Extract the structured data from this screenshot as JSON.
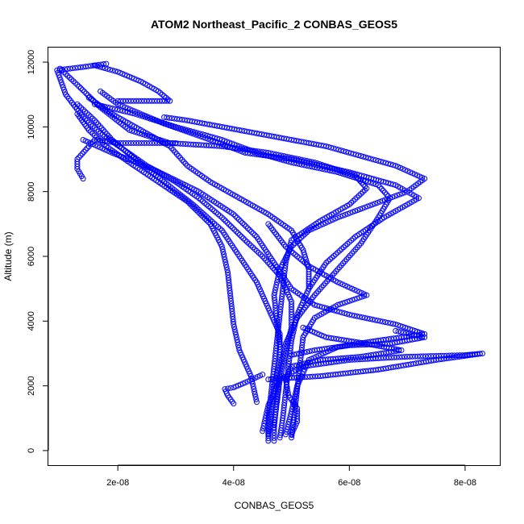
{
  "chart_data": {
    "type": "scatter",
    "title": "ATOM2 Northeast_Pacific_2 CONBAS_GEOS5",
    "xlabel": "CONBAS_GEOS5",
    "ylabel": "Altitude (m)",
    "xlim": [
      8e-09,
      8.6e-08
    ],
    "ylim": [
      -450,
      12450
    ],
    "x_ticks": [
      {
        "value": 2e-08,
        "label": "2e-08"
      },
      {
        "value": 4e-08,
        "label": "4e-08"
      },
      {
        "value": 6e-08,
        "label": "6e-08"
      },
      {
        "value": 8e-08,
        "label": "8e-08"
      }
    ],
    "y_ticks": [
      {
        "value": 0,
        "label": "0"
      },
      {
        "value": 2000,
        "label": "2000"
      },
      {
        "value": 4000,
        "label": "4000"
      },
      {
        "value": 6000,
        "label": "6000"
      },
      {
        "value": 8000,
        "label": "8000"
      },
      {
        "value": 10000,
        "label": "10000"
      },
      {
        "value": 12000,
        "label": "12000"
      }
    ],
    "grid": false,
    "marker": "open-circle",
    "series": [
      {
        "points": [
          [
            4.7e-08,
            300
          ],
          [
            4.7e-08,
            800
          ],
          [
            4.75e-08,
            1500
          ],
          [
            4.8e-08,
            2200
          ],
          [
            4.9e-08,
            3000
          ],
          [
            5e-08,
            3800
          ],
          [
            5e-08,
            4600
          ],
          [
            4.8e-08,
            5400
          ],
          [
            4.5e-08,
            6000
          ],
          [
            4.2e-08,
            6500
          ],
          [
            3.8e-08,
            7200
          ],
          [
            3.4e-08,
            7800
          ],
          [
            3e-08,
            8300
          ],
          [
            2.5e-08,
            8800
          ],
          [
            2.1e-08,
            9300
          ],
          [
            1.7e-08,
            9800
          ],
          [
            1.4e-08,
            10300
          ],
          [
            1.1e-08,
            11000
          ],
          [
            9.5e-09,
            11750
          ],
          [
            1.4e-08,
            11850
          ],
          [
            1.8e-08,
            11950
          ]
        ]
      },
      {
        "points": [
          [
            4.6e-08,
            500
          ],
          [
            4.65e-08,
            1200
          ],
          [
            4.7e-08,
            2000
          ],
          [
            4.8e-08,
            2800
          ],
          [
            4.8e-08,
            3600
          ],
          [
            4.6e-08,
            4400
          ],
          [
            4.4e-08,
            5200
          ],
          [
            4.1e-08,
            6000
          ],
          [
            3.8e-08,
            6800
          ],
          [
            3.3e-08,
            7600
          ],
          [
            2.8e-08,
            8300
          ],
          [
            2.3e-08,
            9000
          ],
          [
            1.9e-08,
            9600
          ],
          [
            1.6e-08,
            10200
          ],
          [
            1.3e-08,
            10700
          ]
        ]
      },
      {
        "points": [
          [
            4.8e-08,
            400
          ],
          [
            4.85e-08,
            1000
          ],
          [
            4.9e-08,
            1800
          ],
          [
            4.95e-08,
            2600
          ],
          [
            5e-08,
            3400
          ],
          [
            5.1e-08,
            4200
          ],
          [
            5.3e-08,
            5000
          ],
          [
            5.6e-08,
            5800
          ],
          [
            6.1e-08,
            6600
          ],
          [
            6.6e-08,
            7200
          ],
          [
            7e-08,
            7600
          ],
          [
            7.2e-08,
            7800
          ],
          [
            6.8e-08,
            8200
          ],
          [
            6e-08,
            8600
          ],
          [
            5e-08,
            9000
          ],
          [
            4.2e-08,
            9200
          ],
          [
            3.6e-08,
            9600
          ],
          [
            2.8e-08,
            10100
          ],
          [
            2e-08,
            10700
          ],
          [
            1.7e-08,
            11100
          ]
        ]
      },
      {
        "points": [
          [
            4.5e-08,
            600
          ],
          [
            4.6e-08,
            1400
          ],
          [
            4.8e-08,
            2200
          ],
          [
            5.2e-08,
            2600
          ],
          [
            6e-08,
            2800
          ],
          [
            7e-08,
            2900
          ],
          [
            8e-08,
            2950
          ],
          [
            8.3e-08,
            3000
          ],
          [
            7.5e-08,
            2800
          ],
          [
            6.5e-08,
            2500
          ],
          [
            5.5e-08,
            2300
          ],
          [
            4.6e-08,
            2200
          ]
        ]
      },
      {
        "points": [
          [
            4.9e-08,
            500
          ],
          [
            5e-08,
            1200
          ],
          [
            5.1e-08,
            2000
          ],
          [
            5.3e-08,
            2800
          ],
          [
            5.8e-08,
            3200
          ],
          [
            6.5e-08,
            3400
          ],
          [
            7.3e-08,
            3600
          ],
          [
            6.8e-08,
            3900
          ],
          [
            6e-08,
            4200
          ],
          [
            5.4e-08,
            4500
          ],
          [
            5e-08,
            5000
          ],
          [
            4.7e-08,
            5800
          ],
          [
            4.4e-08,
            6600
          ],
          [
            4e-08,
            7300
          ],
          [
            3.4e-08,
            8000
          ],
          [
            2.6e-08,
            8700
          ],
          [
            1.9e-08,
            9200
          ],
          [
            1.4e-08,
            9600
          ]
        ]
      },
      {
        "points": [
          [
            4.4e-08,
            1500
          ],
          [
            4.3e-08,
            2300
          ],
          [
            4.1e-08,
            3100
          ],
          [
            4e-08,
            3900
          ],
          [
            3.95e-08,
            4700
          ],
          [
            3.9e-08,
            5500
          ],
          [
            3.8e-08,
            6300
          ],
          [
            3.6e-08,
            7000
          ],
          [
            3.2e-08,
            7700
          ],
          [
            2.7e-08,
            8300
          ],
          [
            2.2e-08,
            8900
          ],
          [
            1.8e-08,
            9400
          ],
          [
            1.5e-08,
            9900
          ],
          [
            1.3e-08,
            10400
          ]
        ]
      },
      {
        "points": [
          [
            4.7e-08,
            700
          ],
          [
            4.75e-08,
            1600
          ],
          [
            4.8e-08,
            2500
          ],
          [
            4.9e-08,
            3300
          ],
          [
            5.1e-08,
            4100
          ],
          [
            5.4e-08,
            4800
          ],
          [
            5.8e-08,
            5600
          ],
          [
            6.2e-08,
            6400
          ],
          [
            6.5e-08,
            7200
          ],
          [
            6.7e-08,
            7800
          ],
          [
            6.5e-08,
            8200
          ],
          [
            5.8e-08,
            8600
          ],
          [
            5e-08,
            8900
          ],
          [
            4.4e-08,
            9200
          ],
          [
            3.8e-08,
            9600
          ],
          [
            3e-08,
            10000
          ],
          [
            2.3e-08,
            10400
          ],
          [
            1.6e-08,
            10700
          ]
        ]
      },
      {
        "points": [
          [
            5e-08,
            400
          ],
          [
            5.05e-08,
            1100
          ],
          [
            5.1e-08,
            1900
          ],
          [
            5.15e-08,
            2700
          ],
          [
            5.2e-08,
            3500
          ],
          [
            5.4e-08,
            4100
          ],
          [
            5.8e-08,
            4500
          ],
          [
            6.3e-08,
            4800
          ],
          [
            5.8e-08,
            5200
          ],
          [
            5.3e-08,
            5700
          ],
          [
            4.9e-08,
            6300
          ],
          [
            4.6e-08,
            7000
          ]
        ]
      },
      {
        "points": [
          [
            4e-08,
            1450
          ],
          [
            3.9e-08,
            1700
          ],
          [
            3.85e-08,
            1900
          ],
          [
            4e-08,
            1950
          ],
          [
            4.2e-08,
            2100
          ],
          [
            4.5e-08,
            2350
          ]
        ]
      },
      {
        "points": [
          [
            4.6e-08,
            300
          ],
          [
            4.6e-08,
            1000
          ],
          [
            4.65e-08,
            1800
          ],
          [
            4.7e-08,
            2600
          ],
          [
            4.75e-08,
            3400
          ],
          [
            4.8e-08,
            4200
          ],
          [
            4.85e-08,
            5000
          ],
          [
            4.9e-08,
            5800
          ],
          [
            5e-08,
            6500
          ],
          [
            5.5e-08,
            7100
          ],
          [
            6e-08,
            7600
          ],
          [
            6.3e-08,
            8100
          ],
          [
            6.1e-08,
            8500
          ],
          [
            5.4e-08,
            8900
          ],
          [
            4.6e-08,
            9200
          ],
          [
            3.8e-08,
            9400
          ],
          [
            2.9e-08,
            9500
          ],
          [
            2.2e-08,
            9900
          ],
          [
            1.7e-08,
            10600
          ],
          [
            1.3e-08,
            11300
          ],
          [
            1e-08,
            11800
          ]
        ]
      },
      {
        "points": [
          [
            1.4e-08,
            8400
          ],
          [
            1.3e-08,
            8700
          ],
          [
            1.3e-08,
            9000
          ],
          [
            1.5e-08,
            9400
          ],
          [
            1.6e-08,
            9600
          ],
          [
            2e-08,
            9500
          ],
          [
            2.5e-08,
            9500
          ],
          [
            3e-08,
            9500
          ]
        ]
      },
      {
        "points": [
          [
            1.6e-08,
            11900
          ],
          [
            2e-08,
            11700
          ],
          [
            2.4e-08,
            11400
          ],
          [
            2.7e-08,
            11100
          ],
          [
            2.9e-08,
            10800
          ],
          [
            2.5e-08,
            10800
          ],
          [
            2e-08,
            10800
          ]
        ]
      },
      {
        "points": [
          [
            2.8e-08,
            10300
          ],
          [
            3.2e-08,
            10200
          ],
          [
            3.8e-08,
            10000
          ],
          [
            4.4e-08,
            9800
          ],
          [
            5e-08,
            9600
          ],
          [
            5.6e-08,
            9400
          ],
          [
            6.2e-08,
            9100
          ],
          [
            6.8e-08,
            8800
          ],
          [
            7.3e-08,
            8400
          ],
          [
            7e-08,
            8000
          ],
          [
            6.4e-08,
            7600
          ],
          [
            5.8e-08,
            7200
          ],
          [
            5.3e-08,
            6800
          ],
          [
            5e-08,
            6300
          ],
          [
            4.8e-08,
            5600
          ],
          [
            4.7e-08,
            4800
          ],
          [
            4.75e-08,
            4000
          ],
          [
            4.8e-08,
            3200
          ]
        ]
      },
      {
        "points": [
          [
            5e-08,
            500
          ],
          [
            5.1e-08,
            900
          ],
          [
            5.1e-08,
            1300
          ],
          [
            4.95e-08,
            1700
          ],
          [
            4.9e-08,
            2200
          ],
          [
            5e-08,
            2600
          ],
          [
            5.5e-08,
            2800
          ],
          [
            6.2e-08,
            2900
          ],
          [
            6.9e-08,
            3100
          ],
          [
            6.3e-08,
            3300
          ],
          [
            5.6e-08,
            3500
          ],
          [
            5.2e-08,
            3800
          ]
        ]
      },
      {
        "points": [
          [
            6.8e-08,
            3700
          ],
          [
            7.3e-08,
            3500
          ],
          [
            6.7e-08,
            3300
          ],
          [
            6e-08,
            3250
          ],
          [
            5.4e-08,
            3100
          ],
          [
            5e-08,
            2950
          ]
        ]
      },
      {
        "points": [
          [
            1.5e-08,
            10900
          ],
          [
            1.9e-08,
            10400
          ],
          [
            2.4e-08,
            9900
          ],
          [
            2.9e-08,
            9400
          ],
          [
            3.2e-08,
            8800
          ],
          [
            3.6e-08,
            8300
          ],
          [
            4.1e-08,
            7800
          ],
          [
            4.6e-08,
            7300
          ],
          [
            5e-08,
            6800
          ],
          [
            5.2e-08,
            6200
          ],
          [
            5.3e-08,
            5600
          ],
          [
            5.3e-08,
            5000
          ]
        ]
      }
    ]
  }
}
